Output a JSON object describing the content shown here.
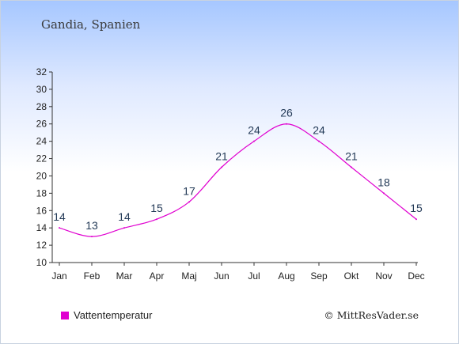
{
  "title": "Gandia, Spanien",
  "credit": "© MittResVader.se",
  "colors": {
    "series": "#e000d0",
    "axis": "#333333",
    "label": "#233a57"
  },
  "chart_data": {
    "type": "line",
    "categories": [
      "Jan",
      "Feb",
      "Mar",
      "Apr",
      "Maj",
      "Jun",
      "Jul",
      "Aug",
      "Sep",
      "Okt",
      "Nov",
      "Dec"
    ],
    "series": [
      {
        "name": "Vattentemperatur",
        "values": [
          14,
          13,
          14,
          15,
          17,
          21,
          24,
          26,
          24,
          21,
          18,
          15
        ]
      }
    ],
    "ylim": [
      10,
      32
    ],
    "yticks": [
      10,
      12,
      14,
      16,
      18,
      20,
      22,
      24,
      26,
      28,
      30,
      32
    ],
    "grid": false,
    "legend": "bottom-left"
  }
}
